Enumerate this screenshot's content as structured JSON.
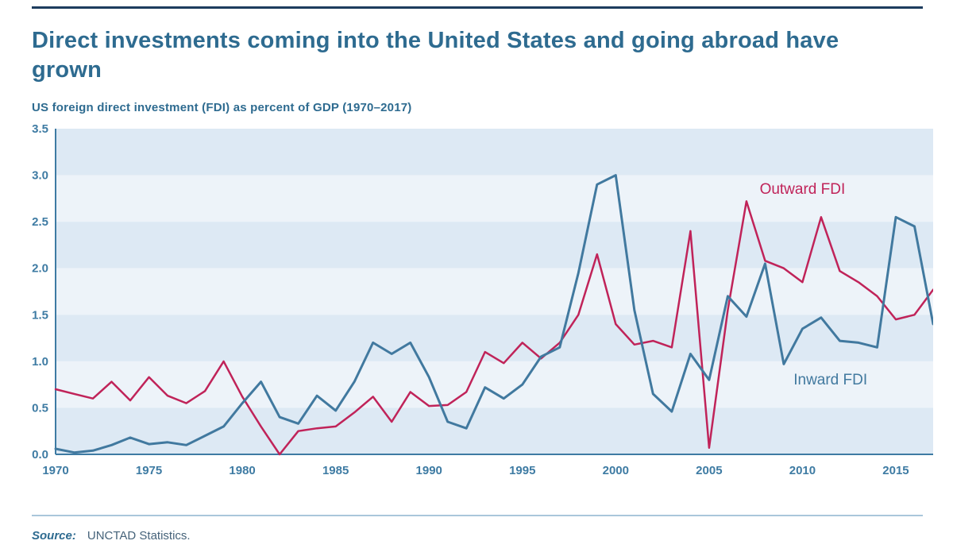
{
  "page": {
    "title": "Direct investments coming into the United States and going abroad have grown",
    "subtitle": "US foreign direct investment (FDI) as percent of GDP (1970–2017)",
    "source_label": "Source:",
    "source_text": "UNCTAD Statistics."
  },
  "colors": {
    "title": "#2e6b90",
    "axis": "#3e7ba3",
    "inward": "#41799f",
    "outward": "#c02359",
    "band_dark": "#dde9f4",
    "band_light": "#edf3f9",
    "top_rule": "#1d3c5e",
    "bottom_rule": "#a9c7db"
  },
  "chart_data": {
    "type": "line",
    "title": "US foreign direct investment (FDI) as percent of GDP (1970–2017)",
    "xlabel": "",
    "ylabel": "percent of GDP",
    "ylim": [
      0,
      3.5
    ],
    "ytick_step": 0.5,
    "xticks": [
      1970,
      1975,
      1980,
      1985,
      1990,
      1995,
      2000,
      2005,
      2010,
      2015
    ],
    "grid": "banded-rows",
    "legend_position": "inline-annotations",
    "x": [
      1970,
      1971,
      1972,
      1973,
      1974,
      1975,
      1976,
      1977,
      1978,
      1979,
      1980,
      1981,
      1982,
      1983,
      1984,
      1985,
      1986,
      1987,
      1988,
      1989,
      1990,
      1991,
      1992,
      1993,
      1994,
      1995,
      1996,
      1997,
      1998,
      1999,
      2000,
      2001,
      2002,
      2003,
      2004,
      2005,
      2006,
      2007,
      2008,
      2009,
      2010,
      2011,
      2012,
      2013,
      2014,
      2015,
      2016,
      2017
    ],
    "series": [
      {
        "name": "Outward FDI",
        "color_key": "outward",
        "width": 2.5,
        "values": [
          0.7,
          0.65,
          0.6,
          0.78,
          0.58,
          0.83,
          0.63,
          0.55,
          0.68,
          1.0,
          0.62,
          0.3,
          0.0,
          0.25,
          0.28,
          0.3,
          0.45,
          0.62,
          0.35,
          0.67,
          0.52,
          0.53,
          0.67,
          1.1,
          0.98,
          1.2,
          1.03,
          1.2,
          1.5,
          2.15,
          1.4,
          1.18,
          1.22,
          1.15,
          2.4,
          0.07,
          1.55,
          2.72,
          2.08,
          2.0,
          1.85,
          2.55,
          1.97,
          1.85,
          1.7,
          1.45,
          1.5,
          1.77
        ]
      },
      {
        "name": "Inward FDI",
        "color_key": "inward",
        "width": 3,
        "values": [
          0.06,
          0.02,
          0.04,
          0.1,
          0.18,
          0.11,
          0.13,
          0.1,
          0.2,
          0.3,
          0.55,
          0.78,
          0.4,
          0.33,
          0.63,
          0.47,
          0.78,
          1.2,
          1.08,
          1.2,
          0.83,
          0.35,
          0.28,
          0.72,
          0.6,
          0.75,
          1.05,
          1.15,
          1.95,
          2.9,
          3.0,
          1.55,
          0.65,
          0.46,
          1.08,
          0.8,
          1.7,
          1.48,
          2.05,
          0.97,
          1.35,
          1.47,
          1.22,
          1.2,
          1.15,
          2.55,
          2.45,
          1.4
        ]
      }
    ],
    "annotations": [
      {
        "text": "Outward FDI",
        "year": 2010.0,
        "value": 2.8,
        "color_key": "outward"
      },
      {
        "text": "Inward FDI",
        "year": 2011.5,
        "value": 0.75,
        "color_key": "inward"
      }
    ]
  }
}
